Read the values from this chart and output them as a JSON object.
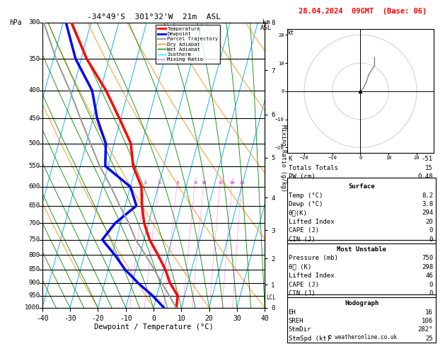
{
  "title_left": "-34°49'S  301°32'W  21m  ASL",
  "title_right": "28.04.2024  09GMT  (Base: 06)",
  "xlabel": "Dewpoint / Temperature (°C)",
  "pressure_levels": [
    300,
    350,
    400,
    450,
    500,
    550,
    600,
    650,
    700,
    750,
    800,
    850,
    900,
    950,
    1000
  ],
  "temp_p": [
    1000,
    950,
    900,
    850,
    800,
    750,
    700,
    650,
    600,
    550,
    500,
    450,
    400,
    350,
    300
  ],
  "temp_T": [
    8.2,
    7.5,
    3.5,
    0.5,
    -3.5,
    -8.0,
    -11.5,
    -14.0,
    -16.0,
    -21.0,
    -24.0,
    -30.5,
    -38.0,
    -48.0,
    -57.0
  ],
  "dewp_p": [
    1000,
    950,
    900,
    850,
    800,
    750,
    700,
    650,
    600,
    550,
    500,
    450,
    400,
    350,
    300
  ],
  "dewp_T": [
    3.8,
    -1.5,
    -8.0,
    -14.0,
    -19.0,
    -25.0,
    -22.0,
    -16.0,
    -20.0,
    -31.0,
    -33.0,
    -38.5,
    -43.0,
    -52.0,
    -59.0
  ],
  "parc_p": [
    1000,
    950,
    900,
    850,
    800,
    750,
    700,
    650,
    600,
    550,
    500,
    450,
    400,
    350,
    300
  ],
  "parc_T": [
    8.2,
    4.5,
    0.5,
    -3.5,
    -8.0,
    -13.0,
    -17.0,
    -22.0,
    -27.0,
    -33.0,
    -38.5,
    -44.5,
    -51.0,
    -59.0,
    -67.0
  ],
  "LCL_p": 958,
  "km_p": [
    1000,
    898,
    795,
    696,
    598,
    496,
    406,
    330,
    264
  ],
  "km_v": [
    0,
    1,
    2,
    3,
    4,
    5,
    6,
    7,
    8
  ],
  "mr_values": [
    2,
    3,
    5,
    8,
    10,
    15,
    20,
    25
  ],
  "stats_K": -51,
  "stats_TT": 15,
  "stats_PW": "0.48",
  "surf_temp": "8.2",
  "surf_dewp": "3.8",
  "surf_theta_e": 294,
  "surf_LI": 20,
  "surf_CAPE": 0,
  "surf_CIN": 0,
  "mu_pres": 750,
  "mu_theta_e": 298,
  "mu_LI": 46,
  "mu_CAPE": 0,
  "mu_CIN": 0,
  "hodo_EH": 16,
  "hodo_SREH": 106,
  "hodo_StmDir": "282°",
  "hodo_StmSpd": 25,
  "c_temp": "#ff0000",
  "c_dewp": "#0000ff",
  "c_parc": "#999999",
  "c_drya": "#ff8800",
  "c_weta": "#008800",
  "c_iso": "#00aaff",
  "c_mix": "#ff00ff",
  "tmin": -40,
  "tmax": 40,
  "pmin": 300,
  "pmax": 1000,
  "skew": 27.5
}
